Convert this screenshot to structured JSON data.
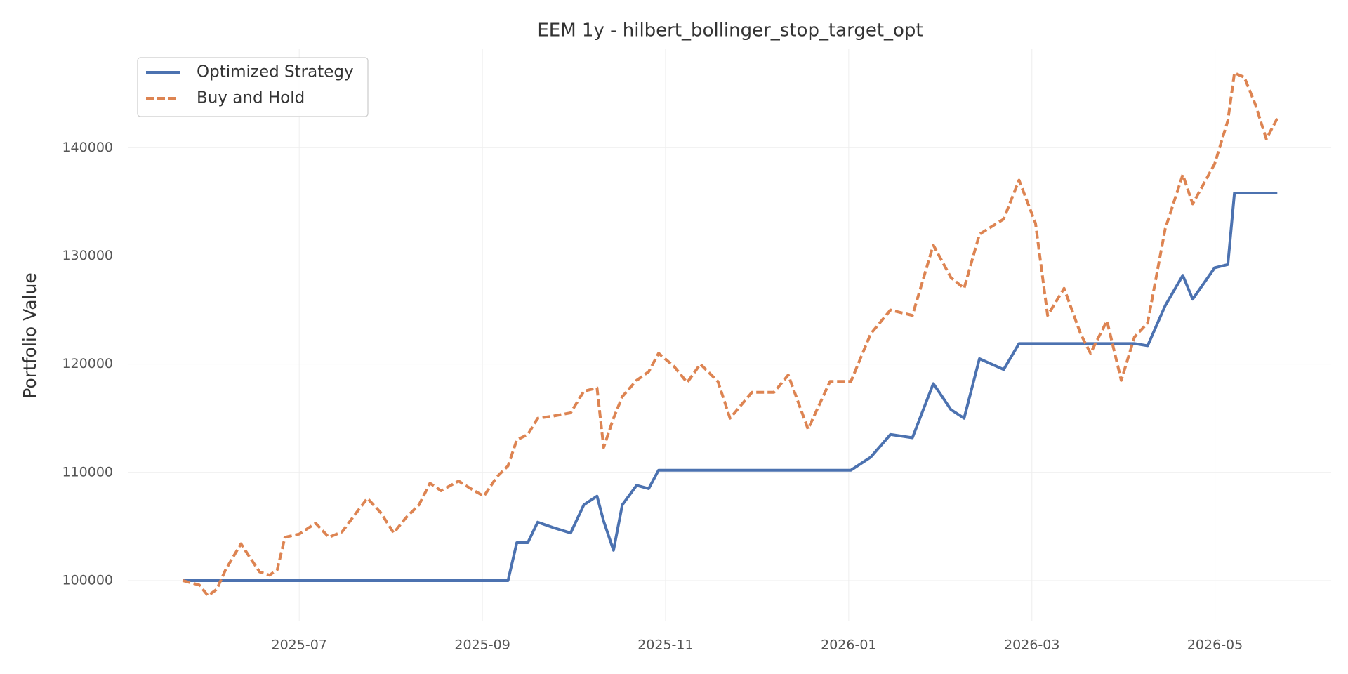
{
  "chart_data": {
    "type": "line",
    "title": "EEM 1y - hilbert_bollinger_stop_target_opt",
    "y_label": "Portfolio Value",
    "x": [
      2025.394,
      2025.409,
      2025.417,
      2025.425,
      2025.433,
      2025.447,
      2025.456,
      2025.464,
      2025.473,
      2025.48,
      2025.487,
      2025.5,
      2025.515,
      2025.527,
      2025.539,
      2025.55,
      2025.562,
      2025.574,
      2025.586,
      2025.597,
      2025.609,
      2025.619,
      2025.629,
      2025.645,
      2025.656,
      2025.668,
      2025.68,
      2025.69,
      2025.698,
      2025.708,
      2025.717,
      2025.731,
      2025.747,
      2025.759,
      2025.771,
      2025.777,
      2025.786,
      2025.794,
      2025.807,
      2025.818,
      2025.827,
      2025.841,
      2025.853,
      2025.865,
      2025.881,
      2025.892,
      2025.912,
      2025.932,
      2025.945,
      2025.963,
      2025.983,
      2026.002,
      2026.02,
      2026.038,
      2026.058,
      2026.077,
      2026.093,
      2026.105,
      2026.119,
      2026.141,
      2026.155,
      2026.17,
      2026.181,
      2026.196,
      2026.211,
      2026.22,
      2026.235,
      2026.248,
      2026.26,
      2026.272,
      2026.288,
      2026.304,
      2026.313,
      2026.333,
      2026.345,
      2026.351,
      2026.36,
      2026.37,
      2026.38,
      2026.39
    ],
    "series": [
      {
        "name": "Optimized Strategy",
        "color": "#4c72b0",
        "dash": false,
        "values": [
          100000,
          100000,
          100000,
          100000,
          100000,
          100000,
          100000,
          100000,
          100000,
          100000,
          100000,
          100000,
          100000,
          100000,
          100000,
          100000,
          100000,
          100000,
          100000,
          100000,
          100000,
          100000,
          100000,
          100000,
          100000,
          100000,
          100000,
          100000,
          103500,
          103500,
          105400,
          104900,
          104400,
          107000,
          107800,
          105500,
          102800,
          107000,
          108800,
          108500,
          110200,
          110200,
          110200,
          110200,
          110200,
          110200,
          110200,
          110200,
          110200,
          110200,
          110200,
          110200,
          111400,
          113500,
          113200,
          118200,
          115800,
          115000,
          120500,
          119500,
          121900,
          121900,
          121900,
          121900,
          121900,
          121900,
          121900,
          121900,
          121900,
          121700,
          125400,
          128200,
          126000,
          128900,
          129200,
          135800,
          135800,
          135800,
          135800,
          135800
        ]
      },
      {
        "name": "Buy and Hold",
        "color": "#dd8452",
        "dash": true,
        "values": [
          100000,
          99600,
          98600,
          99200,
          101000,
          103400,
          102000,
          100800,
          100500,
          101000,
          104000,
          104300,
          105300,
          104000,
          104500,
          106000,
          107600,
          106300,
          104400,
          105800,
          107000,
          109000,
          108300,
          109200,
          108500,
          107800,
          109600,
          110600,
          113000,
          113500,
          115000,
          115200,
          115500,
          117500,
          117800,
          112300,
          115000,
          117000,
          118500,
          119300,
          121000,
          119800,
          118300,
          120000,
          118400,
          115000,
          117400,
          117400,
          119000,
          114000,
          118400,
          118400,
          122800,
          125000,
          124500,
          131000,
          128000,
          127000,
          132000,
          133400,
          137000,
          133000,
          124500,
          127000,
          122800,
          121000,
          124000,
          118500,
          122500,
          123800,
          132500,
          137500,
          134800,
          138500,
          142500,
          146900,
          146500,
          144000,
          140800,
          142700
        ]
      }
    ],
    "xlim": [
      2025.344,
      2026.439
    ],
    "xticks": [
      {
        "value": 2025.5,
        "label": "2025-07"
      },
      {
        "value": 2025.6667,
        "label": "2025-09"
      },
      {
        "value": 2025.8333,
        "label": "2025-11"
      },
      {
        "value": 2026.0,
        "label": "2026-01"
      },
      {
        "value": 2026.1667,
        "label": "2026-03"
      },
      {
        "value": 2026.3333,
        "label": "2026-05"
      }
    ],
    "ylim": [
      96300,
      149100
    ],
    "yticks": [
      100000,
      110000,
      120000,
      130000,
      140000
    ],
    "grid": true,
    "legend": "upper left"
  }
}
